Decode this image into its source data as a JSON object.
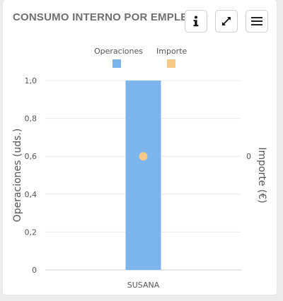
{
  "widget": {
    "title": "CONSUMO INTERNO POR EMPLEADO",
    "buttons": {
      "info_icon": "info-icon",
      "expand_icon": "expand-icon",
      "menu_icon": "menu-icon"
    }
  },
  "colors": {
    "operaciones": "#7cb5ec",
    "importe": "#f7c987",
    "title": "#6f6f6f"
  },
  "chart_data": {
    "type": "bar",
    "categories": [
      "SUSANA"
    ],
    "series": [
      {
        "name": "Operaciones",
        "values": [
          1.0
        ]
      },
      {
        "name": "Importe",
        "values": [
          0
        ],
        "marker": "circle"
      }
    ],
    "ylabel": "Operaciones (uds.)",
    "ylabel_right": "Importe (€)",
    "y_ticks": [
      "0",
      "0,2",
      "0,4",
      "0,6",
      "0,8",
      "1,0"
    ],
    "y_right_ticks": [
      "0"
    ],
    "ylim": [
      0,
      1
    ],
    "legend": "top-center",
    "grid": true
  }
}
